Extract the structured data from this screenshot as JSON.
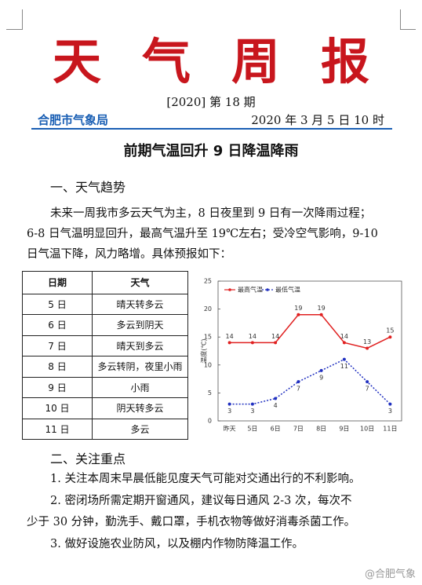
{
  "header": {
    "title": "天气周报",
    "issue": "[2020]  第 18 期",
    "org": "合肥市气象局",
    "date": "2020 年 3 月 5 日 10 时"
  },
  "headline": "前期气温回升  9 日降温降雨",
  "trend": {
    "heading": "一、天气趋势",
    "lines": [
      "未来一周我市多云天气为主，8 日夜里到 9 日有一次降雨过程；",
      "6-8 日气温明显回升，最高气温升至 19℃左右；受冷空气影响，9-10",
      "日气温下降，风力略增。具体预报如下："
    ]
  },
  "table": {
    "header": [
      "日期",
      "天气"
    ],
    "rows": [
      [
        "5 日",
        "晴天转多云"
      ],
      [
        "6 日",
        "多云到阴天"
      ],
      [
        "7 日",
        "晴天到多云"
      ],
      [
        "8 日",
        "多云转阴，夜里小雨"
      ],
      [
        "9 日",
        "小雨"
      ],
      [
        "10 日",
        "阴天转多云"
      ],
      [
        "11 日",
        "多云"
      ]
    ]
  },
  "chart_data": {
    "type": "line",
    "y_label": "温度(℃)",
    "categories": [
      "昨天",
      "5日",
      "6日",
      "7日",
      "8日",
      "9日",
      "10日",
      "11日"
    ],
    "series": [
      {
        "name": "最高气温",
        "color": "#e02020",
        "dash": false,
        "values": [
          14,
          14,
          14,
          19,
          19,
          14,
          13,
          15
        ]
      },
      {
        "name": "最低气温",
        "color": "#2030c0",
        "dash": true,
        "values": [
          3,
          3,
          4,
          7,
          9,
          11,
          7,
          3
        ]
      }
    ],
    "ylim": [
      0,
      25
    ],
    "yticks": [
      0,
      5,
      10,
      15,
      20,
      25
    ],
    "grid": false,
    "legend": "top-left"
  },
  "focus": {
    "heading": "二、关注重点",
    "lines": [
      "1. 关注本周末早晨低能见度天气可能对交通出行的不利影响。",
      "2. 密闭场所需定期开窗通风，建议每日通风 2-3 次，每次不",
      "少于 30 分钟，勤洗手、戴口罩，手机衣物等做好消毒杀菌工作。",
      "3. 做好设施农业防风，以及棚内作物防降温工作。"
    ]
  },
  "watermark": "@合肥气象"
}
